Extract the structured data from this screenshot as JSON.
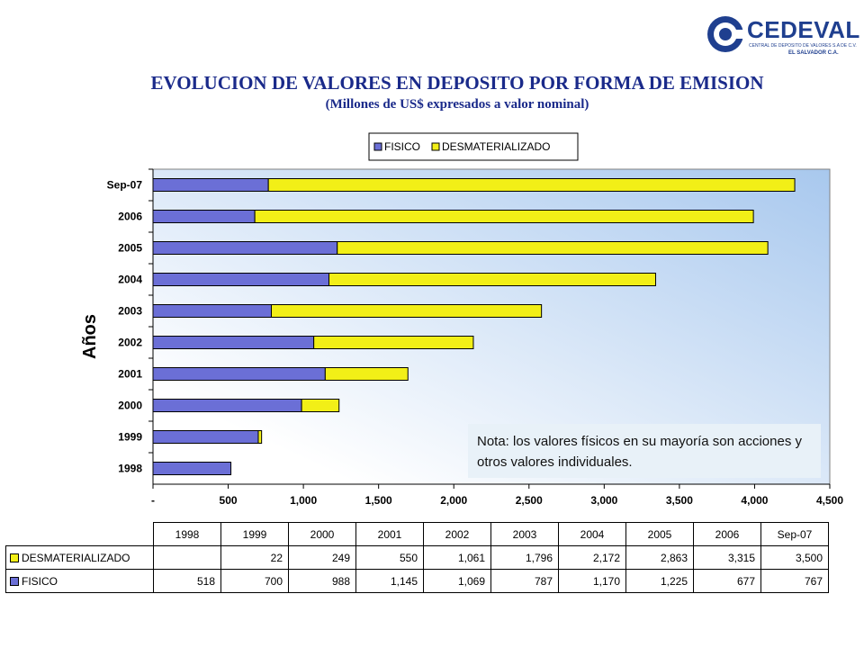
{
  "logo": {
    "name": "CEDEVAL",
    "subtitle": "CENTRAL DE DEPOSITO DE VALORES S.A DE C.V.",
    "country": "EL SALVADOR C.A."
  },
  "title": "EVOLUCION DE VALORES EN DEPOSITO POR FORMA DE EMISION",
  "subtitle": "(Millones de US$ expresados a valor nominal)",
  "note": "Nota: los valores físicos en su mayoría son acciones y otros valores individuales.",
  "colors": {
    "fisico": "#6b6fd6",
    "desmaterializado": "#f2ef17",
    "plot_bg_top": "#a8c8ee",
    "plot_bg_bottom": "#ffffff",
    "title": "#1a2a8a"
  },
  "chart_data": {
    "type": "bar",
    "orientation": "horizontal",
    "stacked": true,
    "ylabel": "Años",
    "categories": [
      "Sep-07",
      "2006",
      "2005",
      "2004",
      "2003",
      "2002",
      "2001",
      "2000",
      "1999",
      "1998"
    ],
    "series": [
      {
        "name": "FISICO",
        "values": [
          767,
          677,
          1225,
          1170,
          787,
          1069,
          1145,
          988,
          700,
          518
        ]
      },
      {
        "name": "DESMATERIALIZADO",
        "values": [
          3500,
          3315,
          2863,
          2172,
          1796,
          1061,
          550,
          249,
          22,
          0
        ]
      }
    ],
    "xlim": [
      0,
      4500
    ],
    "xticks": [
      "-",
      "500",
      "1,000",
      "1,500",
      "2,000",
      "2,500",
      "3,000",
      "3,500",
      "4,000",
      "4,500"
    ],
    "legend_position": "top"
  },
  "table": {
    "headers": [
      "1998",
      "1999",
      "2000",
      "2001",
      "2002",
      "2003",
      "2004",
      "2005",
      "2006",
      "Sep-07"
    ],
    "rows": [
      {
        "label": "DESMATERIALIZADO",
        "values": [
          "",
          "22",
          "249",
          "550",
          "1,061",
          "1,796",
          "2,172",
          "2,863",
          "3,315",
          "3,500"
        ]
      },
      {
        "label": "FISICO",
        "values": [
          "518",
          "700",
          "988",
          "1,145",
          "1,069",
          "787",
          "1,170",
          "1,225",
          "677",
          "767"
        ]
      }
    ]
  }
}
